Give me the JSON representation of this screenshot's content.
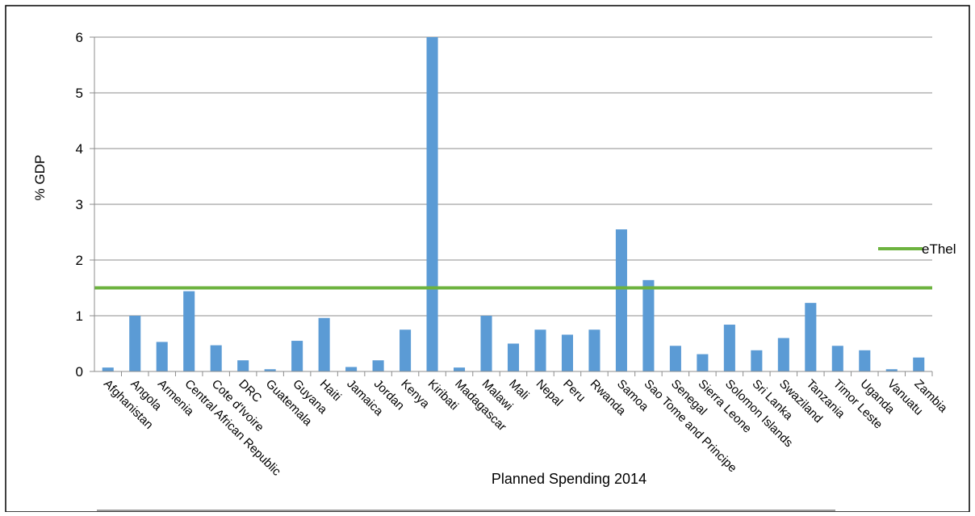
{
  "chart_data": {
    "type": "bar",
    "title": "",
    "xlabel": "Planned Spending 2014",
    "ylabel": "% GDP",
    "ylim": [
      0,
      6
    ],
    "yticks": [
      "0",
      "1",
      "2",
      "3",
      "4",
      "5",
      "6"
    ],
    "grid": true,
    "legend_position": "right",
    "categories": [
      "Afghanistan",
      "Angola",
      "Armenia",
      "Central African Republic",
      "Cote d'Ivoire",
      "DRC",
      "Guatemala",
      "Guyana",
      "Haiti",
      "Jamaica",
      "Jordan",
      "Kenya",
      "Kiribati",
      "Madagascar",
      "Malawi",
      "Mali",
      "Nepal",
      "Peru",
      "Rwanda",
      "Samoa",
      "Sao Tome and Principe",
      "Senegal",
      "Sierra Leone",
      "Solomon Islands",
      "Sri Lanka",
      "Swaziland",
      "Tanzania",
      "Timor Leste",
      "Uganda",
      "Vanuatu",
      "Zambia"
    ],
    "values": [
      0.07,
      1.0,
      0.53,
      1.44,
      0.47,
      0.2,
      0.04,
      0.55,
      0.96,
      0.08,
      0.2,
      0.75,
      6.0,
      0.07,
      1.0,
      0.5,
      0.75,
      0.66,
      0.75,
      2.55,
      1.64,
      0.46,
      0.31,
      0.84,
      0.38,
      0.6,
      1.23,
      0.46,
      0.38,
      0.04,
      0.25
    ],
    "bar_color": "#5B9BD5",
    "reference_line": {
      "name": "eThel",
      "value": 1.5,
      "color": "#6DB33F"
    }
  }
}
